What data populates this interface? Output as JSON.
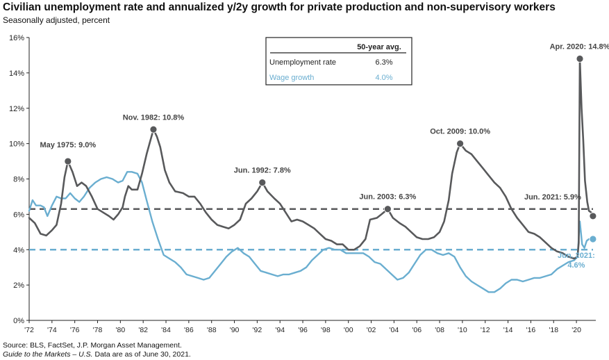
{
  "header": {
    "title": "Civilian unemployment rate and annualized y/2y growth for private production and non-supervisory workers",
    "subtitle": "Seasonally adjusted, percent"
  },
  "footer": {
    "source": "Source: BLS, FactSet, J.P. Morgan Asset Management.",
    "guide_italic": "Guide to the Markets – U.S.",
    "guide_rest": " Data are as of June 30, 2021."
  },
  "colors": {
    "unemployment": "#58595b",
    "wage": "#6aaed0",
    "axis": "#222222"
  },
  "chart_data": {
    "type": "line",
    "title": "Civilian unemployment rate and annualized y/2y growth for private production and non-supervisory workers",
    "ylabel": "Seasonally adjusted, percent",
    "xlim": [
      1972,
      2021.7
    ],
    "ylim": [
      0,
      16
    ],
    "yticks": [
      0,
      2,
      4,
      6,
      8,
      10,
      12,
      14,
      16
    ],
    "ytick_labels": [
      "0%",
      "2%",
      "4%",
      "6%",
      "8%",
      "10%",
      "12%",
      "14%",
      "16%"
    ],
    "xticks": [
      1972,
      1974,
      1976,
      1978,
      1980,
      1982,
      1984,
      1986,
      1988,
      1990,
      1992,
      1994,
      1996,
      1998,
      2000,
      2002,
      2004,
      2006,
      2008,
      2010,
      2012,
      2014,
      2016,
      2018,
      2020
    ],
    "xtick_labels": [
      "'72",
      "'74",
      "'76",
      "'78",
      "'80",
      "'82",
      "'84",
      "'86",
      "'88",
      "'90",
      "'92",
      "'94",
      "'96",
      "'98",
      "'00",
      "'02",
      "'04",
      "'06",
      "'08",
      "'10",
      "'12",
      "'14",
      "'16",
      "'18",
      "'20"
    ],
    "legend_table": {
      "header": "50-year avg.",
      "rows": [
        {
          "label": "Unemployment rate",
          "value": "6.3%",
          "series": "unemployment"
        },
        {
          "label": "Wage growth",
          "value": "4.0%",
          "series": "wage"
        }
      ],
      "placement": "top-center"
    },
    "reference_lines": [
      {
        "series": "unemployment",
        "y": 6.3
      },
      {
        "series": "wage",
        "y": 4.0
      }
    ],
    "series": [
      {
        "name": "Unemployment rate",
        "key": "unemployment",
        "points": [
          [
            1972.0,
            5.8
          ],
          [
            1972.5,
            5.5
          ],
          [
            1973.0,
            4.9
          ],
          [
            1973.5,
            4.8
          ],
          [
            1974.0,
            5.1
          ],
          [
            1974.4,
            5.4
          ],
          [
            1974.8,
            6.6
          ],
          [
            1975.1,
            8.1
          ],
          [
            1975.4,
            9.0
          ],
          [
            1975.8,
            8.4
          ],
          [
            1976.2,
            7.6
          ],
          [
            1976.6,
            7.8
          ],
          [
            1977.0,
            7.6
          ],
          [
            1977.5,
            7.0
          ],
          [
            1978.0,
            6.3
          ],
          [
            1978.5,
            6.1
          ],
          [
            1979.0,
            5.9
          ],
          [
            1979.4,
            5.7
          ],
          [
            1979.8,
            6.0
          ],
          [
            1980.2,
            6.4
          ],
          [
            1980.4,
            7.0
          ],
          [
            1980.7,
            7.6
          ],
          [
            1981.0,
            7.4
          ],
          [
            1981.5,
            7.4
          ],
          [
            1981.9,
            8.3
          ],
          [
            1982.3,
            9.4
          ],
          [
            1982.6,
            10.1
          ],
          [
            1982.9,
            10.8
          ],
          [
            1983.2,
            10.4
          ],
          [
            1983.5,
            9.8
          ],
          [
            1983.9,
            8.5
          ],
          [
            1984.3,
            7.8
          ],
          [
            1984.8,
            7.3
          ],
          [
            1985.5,
            7.2
          ],
          [
            1986.0,
            7.0
          ],
          [
            1986.5,
            7.0
          ],
          [
            1987.0,
            6.6
          ],
          [
            1987.5,
            6.1
          ],
          [
            1988.0,
            5.7
          ],
          [
            1988.5,
            5.4
          ],
          [
            1989.0,
            5.3
          ],
          [
            1989.5,
            5.2
          ],
          [
            1990.0,
            5.4
          ],
          [
            1990.5,
            5.7
          ],
          [
            1991.0,
            6.6
          ],
          [
            1991.5,
            6.9
          ],
          [
            1992.0,
            7.3
          ],
          [
            1992.45,
            7.8
          ],
          [
            1992.9,
            7.3
          ],
          [
            1993.5,
            6.9
          ],
          [
            1994.0,
            6.6
          ],
          [
            1994.5,
            6.1
          ],
          [
            1995.0,
            5.6
          ],
          [
            1995.5,
            5.7
          ],
          [
            1996.0,
            5.6
          ],
          [
            1996.5,
            5.4
          ],
          [
            1997.0,
            5.2
          ],
          [
            1997.5,
            4.9
          ],
          [
            1998.0,
            4.6
          ],
          [
            1998.5,
            4.5
          ],
          [
            1999.0,
            4.3
          ],
          [
            1999.5,
            4.3
          ],
          [
            2000.0,
            4.0
          ],
          [
            2000.5,
            4.0
          ],
          [
            2001.0,
            4.2
          ],
          [
            2001.5,
            4.6
          ],
          [
            2001.9,
            5.7
          ],
          [
            2002.5,
            5.8
          ],
          [
            2002.9,
            6.0
          ],
          [
            2003.45,
            6.3
          ],
          [
            2003.9,
            5.8
          ],
          [
            2004.5,
            5.5
          ],
          [
            2005.0,
            5.3
          ],
          [
            2005.5,
            5.0
          ],
          [
            2006.0,
            4.7
          ],
          [
            2006.5,
            4.6
          ],
          [
            2007.0,
            4.6
          ],
          [
            2007.5,
            4.7
          ],
          [
            2008.0,
            5.0
          ],
          [
            2008.4,
            5.6
          ],
          [
            2008.8,
            6.8
          ],
          [
            2009.1,
            8.3
          ],
          [
            2009.5,
            9.5
          ],
          [
            2009.8,
            10.0
          ],
          [
            2010.3,
            9.6
          ],
          [
            2010.8,
            9.4
          ],
          [
            2011.3,
            9.0
          ],
          [
            2011.8,
            8.6
          ],
          [
            2012.3,
            8.2
          ],
          [
            2012.8,
            7.8
          ],
          [
            2013.3,
            7.5
          ],
          [
            2013.8,
            7.0
          ],
          [
            2014.3,
            6.3
          ],
          [
            2014.8,
            5.8
          ],
          [
            2015.3,
            5.4
          ],
          [
            2015.8,
            5.0
          ],
          [
            2016.3,
            4.9
          ],
          [
            2016.8,
            4.7
          ],
          [
            2017.3,
            4.4
          ],
          [
            2017.8,
            4.1
          ],
          [
            2018.3,
            3.9
          ],
          [
            2018.8,
            3.8
          ],
          [
            2019.3,
            3.6
          ],
          [
            2019.8,
            3.5
          ],
          [
            2020.1,
            3.6
          ],
          [
            2020.2,
            4.4
          ],
          [
            2020.3,
            14.8
          ],
          [
            2020.45,
            12.0
          ],
          [
            2020.6,
            10.2
          ],
          [
            2020.75,
            7.9
          ],
          [
            2020.95,
            6.7
          ],
          [
            2021.1,
            6.2
          ],
          [
            2021.3,
            6.1
          ],
          [
            2021.45,
            5.9
          ]
        ]
      },
      {
        "name": "Wage growth",
        "key": "wage",
        "points": [
          [
            1972.0,
            6.2
          ],
          [
            1972.3,
            6.8
          ],
          [
            1972.6,
            6.5
          ],
          [
            1973.0,
            6.5
          ],
          [
            1973.3,
            6.4
          ],
          [
            1973.6,
            5.9
          ],
          [
            1974.0,
            6.5
          ],
          [
            1974.4,
            7.0
          ],
          [
            1974.8,
            6.9
          ],
          [
            1975.2,
            6.9
          ],
          [
            1975.6,
            7.2
          ],
          [
            1976.0,
            6.9
          ],
          [
            1976.4,
            6.7
          ],
          [
            1976.8,
            7.0
          ],
          [
            1977.3,
            7.5
          ],
          [
            1977.8,
            7.8
          ],
          [
            1978.3,
            8.0
          ],
          [
            1978.8,
            8.1
          ],
          [
            1979.3,
            8.0
          ],
          [
            1979.8,
            7.8
          ],
          [
            1980.2,
            7.9
          ],
          [
            1980.6,
            8.4
          ],
          [
            1981.0,
            8.4
          ],
          [
            1981.5,
            8.3
          ],
          [
            1981.9,
            7.8
          ],
          [
            1982.3,
            6.8
          ],
          [
            1982.8,
            5.6
          ],
          [
            1983.3,
            4.6
          ],
          [
            1983.8,
            3.7
          ],
          [
            1984.3,
            3.5
          ],
          [
            1984.8,
            3.3
          ],
          [
            1985.3,
            3.0
          ],
          [
            1985.8,
            2.6
          ],
          [
            1986.3,
            2.5
          ],
          [
            1986.8,
            2.4
          ],
          [
            1987.3,
            2.3
          ],
          [
            1987.8,
            2.4
          ],
          [
            1988.3,
            2.8
          ],
          [
            1988.8,
            3.2
          ],
          [
            1989.3,
            3.6
          ],
          [
            1989.8,
            3.9
          ],
          [
            1990.3,
            4.1
          ],
          [
            1990.8,
            3.8
          ],
          [
            1991.3,
            3.6
          ],
          [
            1991.8,
            3.2
          ],
          [
            1992.3,
            2.8
          ],
          [
            1992.8,
            2.7
          ],
          [
            1993.3,
            2.6
          ],
          [
            1993.8,
            2.5
          ],
          [
            1994.3,
            2.6
          ],
          [
            1994.8,
            2.6
          ],
          [
            1995.3,
            2.7
          ],
          [
            1995.8,
            2.8
          ],
          [
            1996.3,
            3.0
          ],
          [
            1996.8,
            3.4
          ],
          [
            1997.3,
            3.7
          ],
          [
            1997.8,
            4.0
          ],
          [
            1998.3,
            4.1
          ],
          [
            1998.8,
            4.0
          ],
          [
            1999.3,
            4.0
          ],
          [
            1999.8,
            3.8
          ],
          [
            2000.3,
            3.8
          ],
          [
            2000.8,
            3.8
          ],
          [
            2001.3,
            3.8
          ],
          [
            2001.8,
            3.6
          ],
          [
            2002.3,
            3.3
          ],
          [
            2002.8,
            3.2
          ],
          [
            2003.3,
            2.9
          ],
          [
            2003.8,
            2.6
          ],
          [
            2004.3,
            2.3
          ],
          [
            2004.8,
            2.4
          ],
          [
            2005.3,
            2.7
          ],
          [
            2005.8,
            3.2
          ],
          [
            2006.3,
            3.7
          ],
          [
            2006.8,
            4.0
          ],
          [
            2007.3,
            4.0
          ],
          [
            2007.8,
            3.8
          ],
          [
            2008.3,
            3.7
          ],
          [
            2008.8,
            3.8
          ],
          [
            2009.3,
            3.6
          ],
          [
            2009.8,
            3.0
          ],
          [
            2010.3,
            2.5
          ],
          [
            2010.8,
            2.2
          ],
          [
            2011.3,
            2.0
          ],
          [
            2011.8,
            1.8
          ],
          [
            2012.3,
            1.6
          ],
          [
            2012.8,
            1.6
          ],
          [
            2013.3,
            1.8
          ],
          [
            2013.8,
            2.1
          ],
          [
            2014.3,
            2.3
          ],
          [
            2014.8,
            2.3
          ],
          [
            2015.3,
            2.2
          ],
          [
            2015.8,
            2.3
          ],
          [
            2016.3,
            2.4
          ],
          [
            2016.8,
            2.4
          ],
          [
            2017.3,
            2.5
          ],
          [
            2017.8,
            2.6
          ],
          [
            2018.3,
            2.9
          ],
          [
            2018.8,
            3.1
          ],
          [
            2019.3,
            3.3
          ],
          [
            2019.8,
            3.4
          ],
          [
            2020.1,
            3.6
          ],
          [
            2020.3,
            5.6
          ],
          [
            2020.5,
            4.3
          ],
          [
            2020.7,
            4.1
          ],
          [
            2020.9,
            4.5
          ],
          [
            2021.1,
            4.6
          ],
          [
            2021.45,
            4.6
          ]
        ]
      }
    ],
    "markers": [
      {
        "series": "unemployment",
        "x": 1975.4,
        "y": 9.0,
        "label": "May 1975: 9.0%",
        "anchor": "middle",
        "dy": -20
      },
      {
        "series": "unemployment",
        "x": 1982.9,
        "y": 10.8,
        "label": "Nov. 1982: 10.8%",
        "anchor": "middle",
        "dy": -14
      },
      {
        "series": "unemployment",
        "x": 1992.45,
        "y": 7.8,
        "label": "Jun. 1992: 7.8%",
        "anchor": "middle",
        "dy": -14
      },
      {
        "series": "unemployment",
        "x": 2003.45,
        "y": 6.3,
        "label": "Jun. 2003: 6.3%",
        "anchor": "middle",
        "dy": -14
      },
      {
        "series": "unemployment",
        "x": 2009.8,
        "y": 10.0,
        "label": "Oct. 2009: 10.0%",
        "anchor": "middle",
        "dy": -14
      },
      {
        "series": "unemployment",
        "x": 2020.3,
        "y": 14.8,
        "label": "Apr. 2020: 14.8%",
        "anchor": "middle",
        "dy": -14
      },
      {
        "series": "unemployment",
        "x": 2021.45,
        "y": 5.9,
        "label": "Jun. 2021: 5.9%",
        "anchor": "end",
        "dy": -24,
        "dx": -17
      },
      {
        "series": "wage",
        "x": 2021.45,
        "y": 4.6,
        "label": "Jun. 2021:",
        "label2": "4.6%",
        "anchor": "middle",
        "dy": 27,
        "dx": -24
      }
    ]
  }
}
